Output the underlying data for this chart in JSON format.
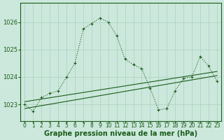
{
  "background_color": "#cce8dc",
  "grid_color": "#aacfbf",
  "line_color": "#1a5c1a",
  "x_labels": [
    "0",
    "1",
    "2",
    "3",
    "4",
    "5",
    "6",
    "7",
    "8",
    "9",
    "10",
    "11",
    "12",
    "13",
    "14",
    "15",
    "16",
    "17",
    "18",
    "19",
    "20",
    "21",
    "22",
    "23"
  ],
  "xlabel": "Graphe pression niveau de la mer (hPa)",
  "xlabel_fontsize": 7,
  "yticks": [
    1023,
    1024,
    1025,
    1026
  ],
  "ylim": [
    1022.4,
    1026.7
  ],
  "xlim": [
    -0.5,
    23.5
  ],
  "line1_x": [
    0,
    1,
    2,
    3,
    4,
    5,
    6,
    7,
    8,
    9,
    10,
    11,
    12,
    13,
    14,
    15,
    16,
    17,
    18,
    19,
    20,
    21,
    22,
    23
  ],
  "line1_y": [
    1023.0,
    1022.75,
    1023.25,
    1023.4,
    1023.5,
    1024.0,
    1024.5,
    1025.75,
    1025.95,
    1026.15,
    1026.0,
    1025.5,
    1024.65,
    1024.45,
    1024.3,
    1023.6,
    1022.8,
    1022.85,
    1023.5,
    1023.95,
    1024.0,
    1024.75,
    1024.4,
    1023.85
  ],
  "line2_x": [
    0,
    23
  ],
  "line2_y": [
    1023.1,
    1024.2
  ],
  "line3_x": [
    0,
    23
  ],
  "line3_y": [
    1022.85,
    1024.05
  ],
  "markersize": 3.0,
  "linewidth": 0.8,
  "linewidth_trend": 0.8,
  "tick_fontsize": 5.5,
  "ytick_fontsize": 6
}
